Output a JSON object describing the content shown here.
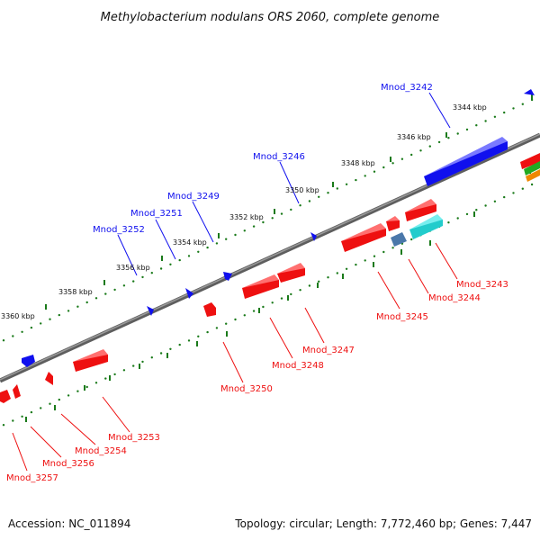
{
  "title": "Methylobacterium nodulans ORS 2060, complete genome",
  "footer": {
    "accession": "Accession: NC_011894",
    "summary": "Topology: circular; Length: 7,772,460 bp; Genes: 7,447"
  },
  "kbp_labels": [
    "3344 kbp",
    "3346 kbp",
    "3348 kbp",
    "3350 kbp",
    "3352 kbp",
    "3354 kbp",
    "3356 kbp",
    "3358 kbp",
    "3360 kbp"
  ],
  "top_genes": [
    "Mnod_3242",
    "Mnod_3246",
    "Mnod_3249",
    "Mnod_3251",
    "Mnod_3252"
  ],
  "bottom_genes": [
    "Mnod_3243",
    "Mnod_3244",
    "Mnod_3245",
    "Mnod_3247",
    "Mnod_3248",
    "Mnod_3250",
    "Mnod_3253",
    "Mnod_3254",
    "Mnod_3256",
    "Mnod_3257"
  ],
  "colors": {
    "forward": "#1010ee",
    "reverse": "#ee1010",
    "backbone": "#7a7a7a",
    "tick": "#1a7a1a",
    "teal": "#22cccc",
    "steel": "#4a78aa"
  }
}
